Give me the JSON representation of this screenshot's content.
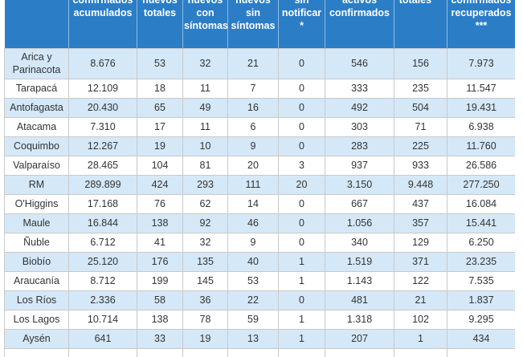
{
  "table": {
    "columns": [
      "confirmados acumulados",
      "nuevos totales",
      "nuevos con síntomas",
      "nuevos sin síntomas",
      "sin notificar *",
      "activos confirmados",
      "totales **",
      "confirmados recuperados ***"
    ],
    "rows": [
      [
        "Arica y Parinacota",
        "8.676",
        "53",
        "32",
        "21",
        "0",
        "546",
        "156",
        "7.973"
      ],
      [
        "Tarapacá",
        "12.109",
        "18",
        "11",
        "7",
        "0",
        "333",
        "235",
        "11.547"
      ],
      [
        "Antofagasta",
        "20.430",
        "65",
        "49",
        "16",
        "0",
        "492",
        "504",
        "19.431"
      ],
      [
        "Atacama",
        "7.310",
        "17",
        "11",
        "6",
        "0",
        "303",
        "71",
        "6.938"
      ],
      [
        "Coquimbo",
        "12.267",
        "19",
        "10",
        "9",
        "0",
        "283",
        "225",
        "11.760"
      ],
      [
        "Valparaíso",
        "28.465",
        "104",
        "81",
        "20",
        "3",
        "937",
        "933",
        "26.586"
      ],
      [
        "RM",
        "289.899",
        "424",
        "293",
        "111",
        "20",
        "3.150",
        "9.448",
        "277.250"
      ],
      [
        "O'Higgins",
        "17.168",
        "76",
        "62",
        "14",
        "0",
        "667",
        "437",
        "16.084"
      ],
      [
        "Maule",
        "16.844",
        "138",
        "92",
        "46",
        "0",
        "1.056",
        "357",
        "15.441"
      ],
      [
        "Ñuble",
        "6.712",
        "41",
        "32",
        "9",
        "0",
        "340",
        "129",
        "6.250"
      ],
      [
        "Biobío",
        "25.120",
        "176",
        "135",
        "40",
        "1",
        "1.519",
        "371",
        "23.235"
      ],
      [
        "Araucanía",
        "8.712",
        "199",
        "145",
        "53",
        "1",
        "1.143",
        "122",
        "7.535"
      ],
      [
        "Los Ríos",
        "2.336",
        "58",
        "36",
        "22",
        "0",
        "481",
        "21",
        "1.837"
      ],
      [
        "Los Lagos",
        "10.714",
        "138",
        "78",
        "59",
        "1",
        "1.318",
        "102",
        "9.295"
      ],
      [
        "Aysén",
        "641",
        "33",
        "19",
        "13",
        "1",
        "207",
        "1",
        "434"
      ]
    ]
  }
}
